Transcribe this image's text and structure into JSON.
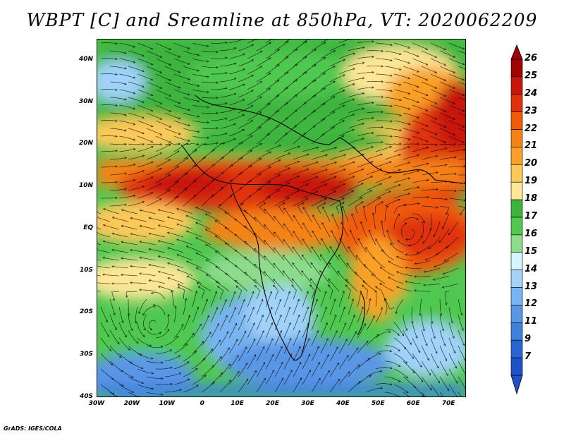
{
  "title": "WBPT [C] and Sreamline at 850hPa, VT: 2020062209",
  "footer": "GrADS: IGES/COLA",
  "axes": {
    "lat_labels": [
      "40N",
      "30N",
      "20N",
      "10N",
      "EQ",
      "10S",
      "20S",
      "30S",
      "40S"
    ],
    "lat_values": [
      40,
      30,
      20,
      10,
      0,
      -10,
      -20,
      -30,
      -40
    ],
    "lon_labels": [
      "30W",
      "20W",
      "10W",
      "0",
      "10E",
      "20E",
      "30E",
      "40E",
      "50E",
      "60E",
      "70E"
    ],
    "lon_values": [
      -30,
      -20,
      -10,
      0,
      10,
      20,
      30,
      40,
      50,
      60,
      70
    ],
    "lon_range": [
      -30,
      75
    ],
    "lat_range": [
      -40,
      45
    ]
  },
  "colorbar": {
    "labels": [
      "26",
      "25",
      "24",
      "23",
      "22",
      "21",
      "20",
      "19",
      "18",
      "17",
      "16",
      "15",
      "14",
      "13",
      "12",
      "11",
      "9",
      "7"
    ],
    "colors": [
      "#a00000",
      "#c8140a",
      "#e0320a",
      "#f05a0a",
      "#f58214",
      "#faa028",
      "#fcc85a",
      "#fde696",
      "#3cb43c",
      "#50c850",
      "#8cdc8c",
      "#d2f5ff",
      "#a0d2fa",
      "#78b4f0",
      "#5a96e6",
      "#3c82dc",
      "#2864d2",
      "#1e50c8"
    ],
    "top_arrow_color": "#a00000",
    "bottom_arrow_color": "#1e50c8"
  }
}
